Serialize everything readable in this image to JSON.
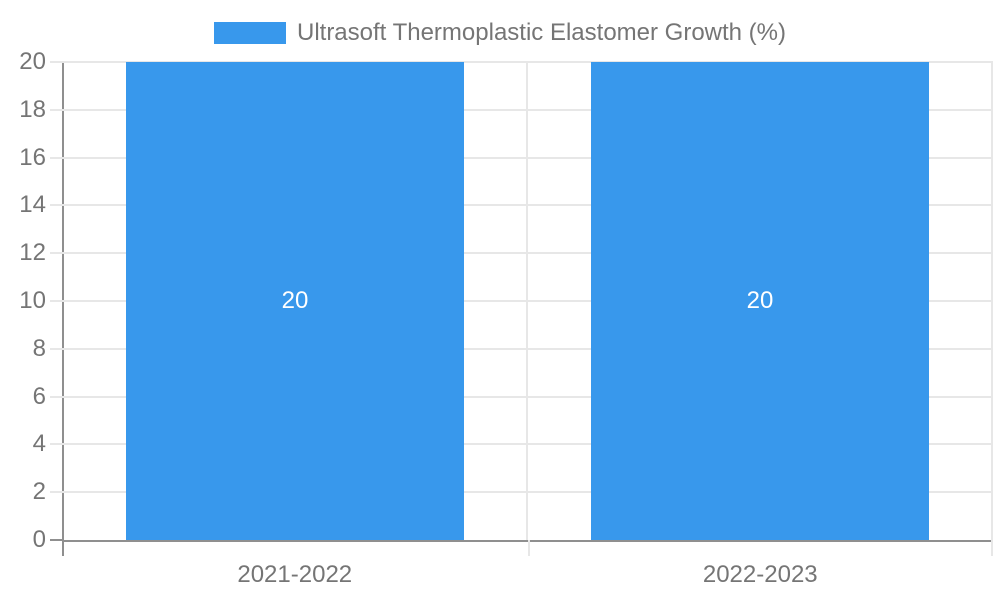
{
  "chart_data": {
    "type": "bar",
    "title": "",
    "legend": {
      "label": "Ultrasoft Thermoplastic Elastomer Growth (%)",
      "position": "top"
    },
    "categories": [
      "2021-2022",
      "2022-2023"
    ],
    "series": [
      {
        "name": "Ultrasoft Thermoplastic Elastomer Growth (%)",
        "values": [
          20,
          20
        ]
      }
    ],
    "bar_value_labels": [
      "20",
      "20"
    ],
    "xlabel": "",
    "ylabel": "",
    "ylim": [
      0,
      20
    ],
    "yticks": [
      0,
      2,
      4,
      6,
      8,
      10,
      12,
      14,
      16,
      18,
      20
    ],
    "grid": true,
    "colors": {
      "bar": "#3898ec",
      "grid_line": "#e7e7e7",
      "axis_line": "#8f8f8f",
      "tick_label": "#757575",
      "legend_label": "#757575",
      "bar_value_label": "#ffffff",
      "background": "#ffffff"
    }
  }
}
